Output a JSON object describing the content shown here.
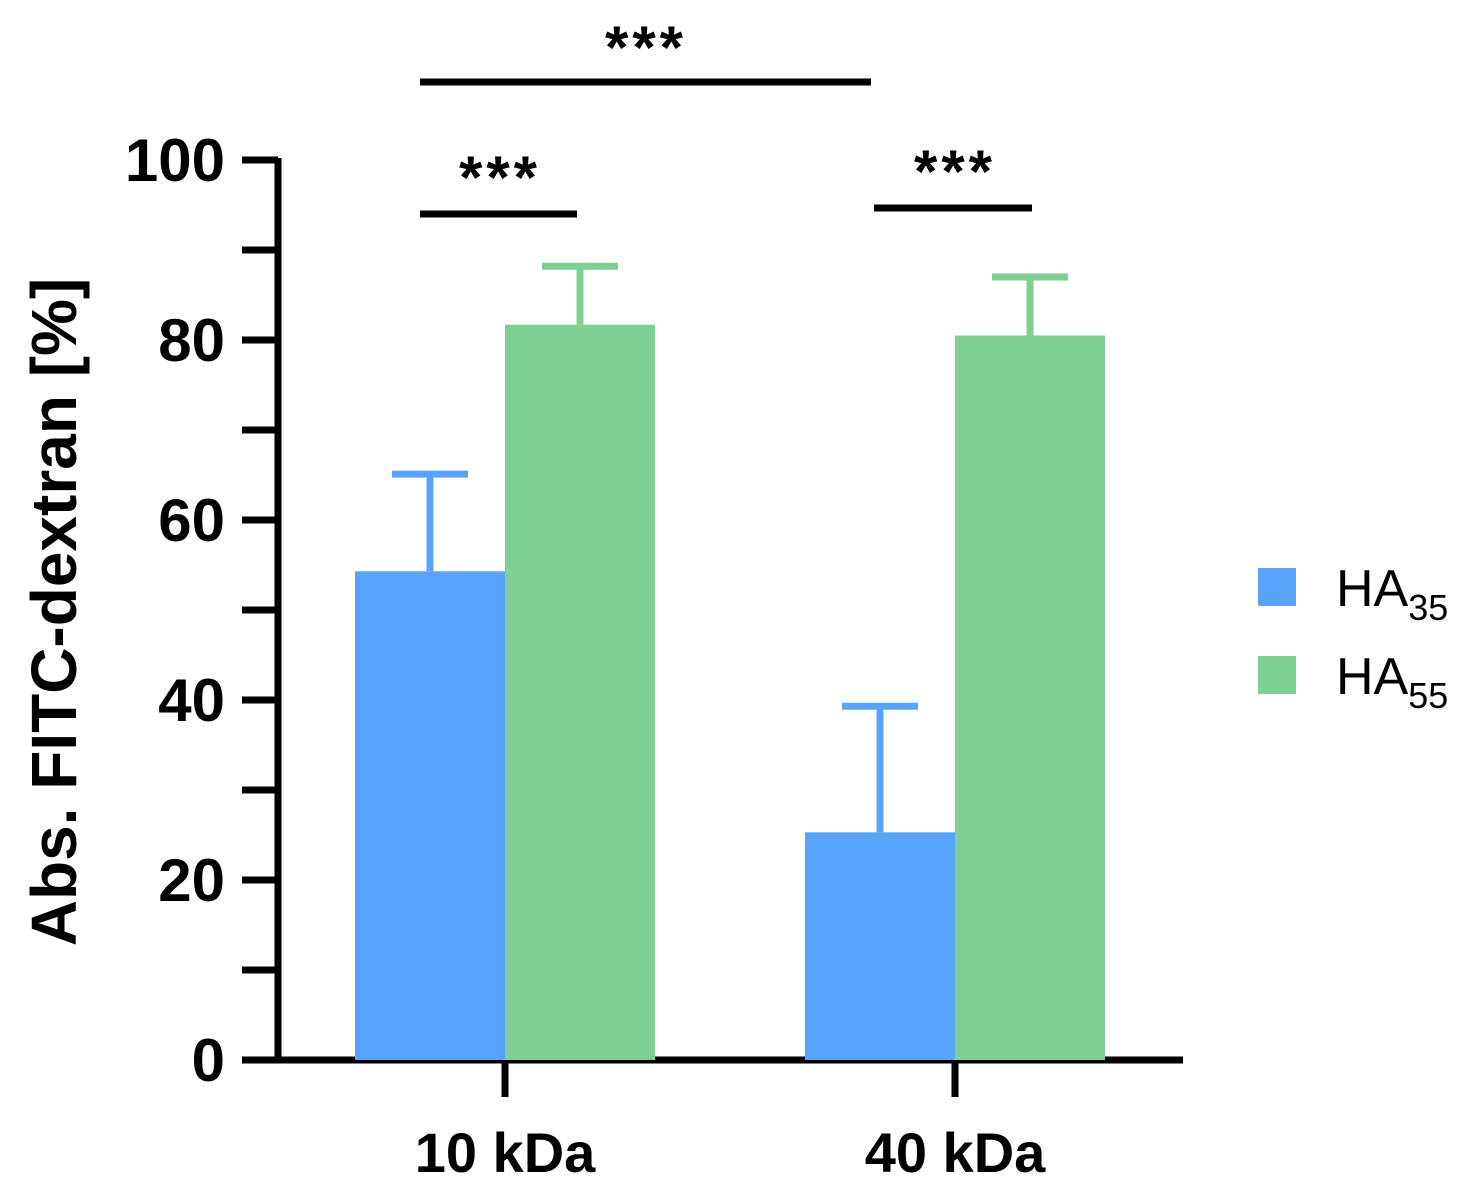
{
  "chart_data": {
    "type": "bar",
    "title": "",
    "xlabel": "",
    "ylabel": "Abs. FITC-dextran [%]",
    "ylim": [
      0,
      100
    ],
    "yticks": [
      0,
      20,
      40,
      60,
      80,
      100
    ],
    "categories": [
      "10 kDa",
      "40 kDa"
    ],
    "series": [
      {
        "name": "HA",
        "subscript": "35",
        "color": "#58a3fb",
        "values": [
          54.3,
          25.3
        ],
        "errors": [
          10.8,
          14.0
        ]
      },
      {
        "name": "HA",
        "subscript": "55",
        "color": "#7dcf93",
        "values": [
          81.7,
          80.5
        ],
        "errors": [
          6.5,
          6.5
        ]
      }
    ],
    "significance": [
      {
        "label": "***",
        "between": "10 kDa vs 40 kDa",
        "level": 1
      },
      {
        "label": "***",
        "between": "10 kDa: HA35 vs HA55",
        "level": 0
      },
      {
        "label": "***",
        "between": "40 kDa: HA35 vs HA55",
        "level": 0
      }
    ],
    "legend_position": "right"
  }
}
